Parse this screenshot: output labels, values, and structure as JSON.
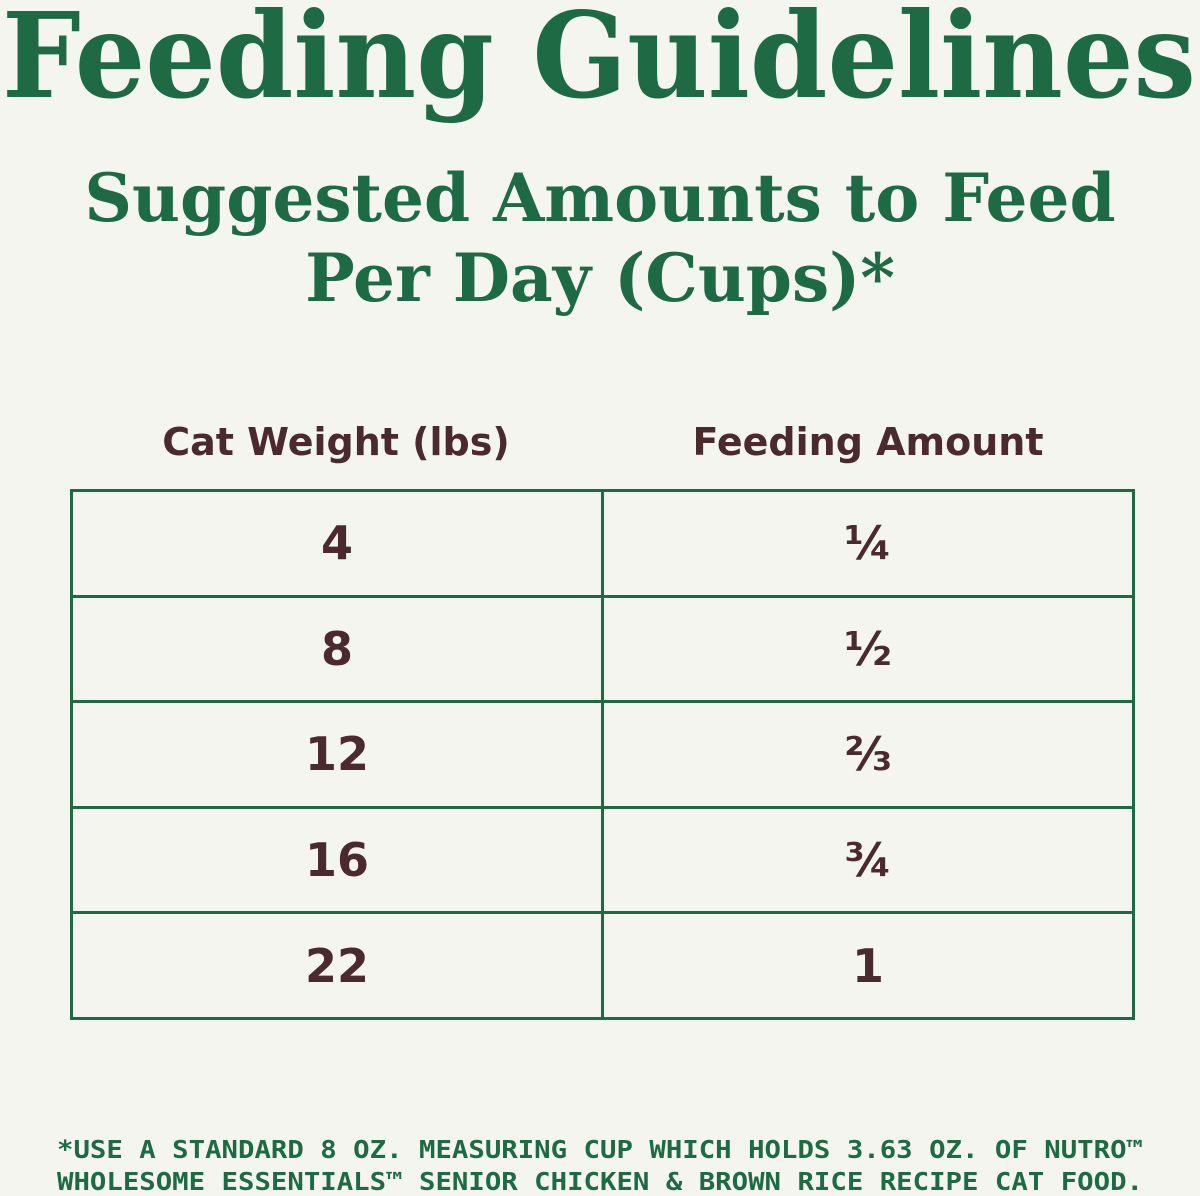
{
  "header": {
    "title": "Feeding Guidelines",
    "subtitle": [
      "Suggested Amounts to Feed",
      "Per Day (Cups)*"
    ]
  },
  "table": {
    "columns": [
      "Cat Weight (lbs)",
      "Feeding Amount"
    ],
    "rows": [
      [
        "4",
        "¼"
      ],
      [
        "8",
        "½"
      ],
      [
        "12",
        "⅔"
      ],
      [
        "16",
        "¾"
      ],
      [
        "22",
        "1"
      ]
    ]
  },
  "footnote": [
    "*USE A STANDARD 8 OZ. MEASURING CUP WHICH HOLDS 3.63 OZ. OF NUTRO™",
    "WHOLESOME ESSENTIALS™ SENIOR CHICKEN & BROWN RICE RECIPE CAT FOOD."
  ]
}
